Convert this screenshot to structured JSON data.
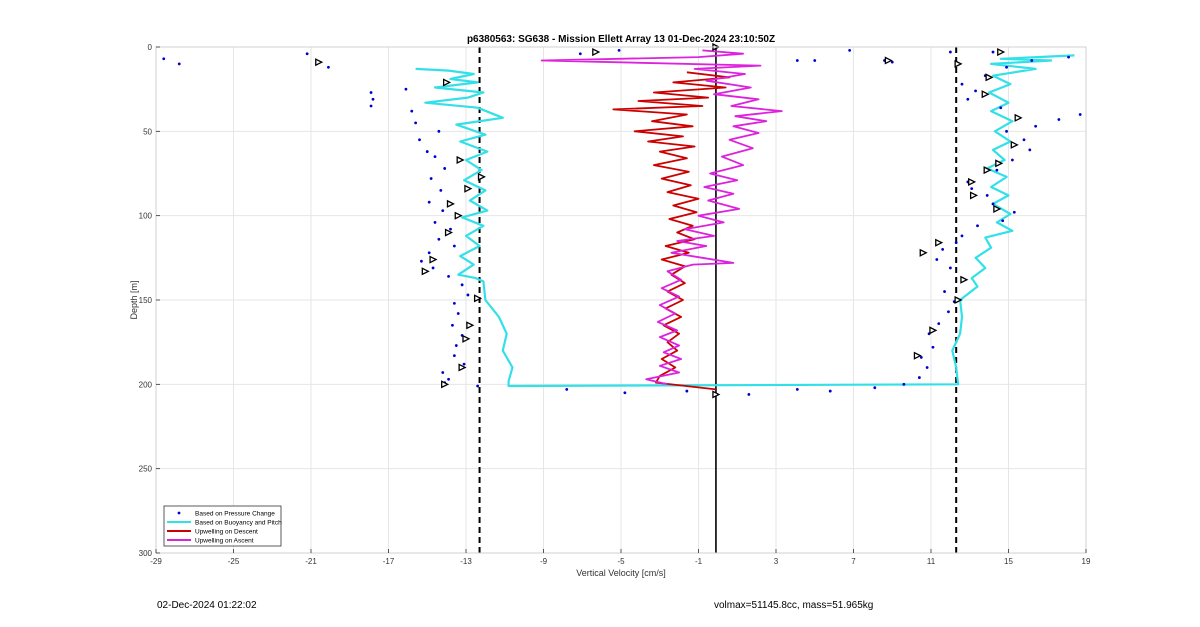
{
  "chart_data": {
    "type": "line",
    "title": "p6380563: SG638 - Mission Ellett Array 13 01-Dec-2024 23:10:50Z",
    "xlabel": "Vertical Velocity [cm/s]",
    "ylabel": "Depth [m]",
    "xlim": [
      -29,
      19
    ],
    "ylim": [
      0,
      300
    ],
    "y_reversed": true,
    "x_ticks": [
      -29,
      -25,
      -21,
      -17,
      -13,
      -9,
      -5,
      -1,
      3,
      7,
      11,
      15,
      19
    ],
    "y_ticks": [
      0,
      50,
      100,
      150,
      200,
      250,
      300
    ],
    "x_tick_labels": [
      "-29",
      "-25",
      "-21",
      "-17",
      "-13",
      "-9",
      "-5",
      "-1",
      "3",
      "7",
      "11",
      "15",
      "19"
    ],
    "y_tick_labels": [
      "0",
      "50",
      "100",
      "150",
      "200",
      "250",
      "300"
    ],
    "grid": true,
    "legend_position": "bottom-left",
    "reference_lines": {
      "dashed_x": [
        -12.3,
        12.3
      ],
      "solid_x": [
        -0.1
      ]
    },
    "series": [
      {
        "name": "Based on Pressure Change",
        "style": "dots",
        "color": "#0000cc",
        "points": [
          [
            -28.6,
            7
          ],
          [
            -27.8,
            10
          ],
          [
            -21.2,
            4
          ],
          [
            -20.1,
            12
          ],
          [
            -17.9,
            27
          ],
          [
            -17.8,
            31
          ],
          [
            -17.9,
            35
          ],
          [
            -16.1,
            25
          ],
          [
            -15.8,
            38
          ],
          [
            -15.6,
            45
          ],
          [
            -15.4,
            55
          ],
          [
            -15.0,
            62
          ],
          [
            -14.4,
            50
          ],
          [
            -14.6,
            65
          ],
          [
            -14.1,
            72
          ],
          [
            -14.8,
            78
          ],
          [
            -14.3,
            85
          ],
          [
            -14.9,
            92
          ],
          [
            -14.2,
            97
          ],
          [
            -14.6,
            104
          ],
          [
            -13.8,
            108
          ],
          [
            -14.4,
            114
          ],
          [
            -13.6,
            118
          ],
          [
            -14.9,
            122
          ],
          [
            -15.3,
            127
          ],
          [
            -14.7,
            131
          ],
          [
            -13.9,
            136
          ],
          [
            -13.2,
            141
          ],
          [
            -12.9,
            147
          ],
          [
            -13.6,
            152
          ],
          [
            -13.4,
            158
          ],
          [
            -13.7,
            165
          ],
          [
            -13.2,
            171
          ],
          [
            -13.5,
            177
          ],
          [
            -13.6,
            183
          ],
          [
            -13.1,
            188
          ],
          [
            -14.2,
            193
          ],
          [
            -13.9,
            197
          ],
          [
            -14.1,
            199
          ],
          [
            -12.4,
            201
          ],
          [
            -7.8,
            203
          ],
          [
            -4.8,
            205
          ],
          [
            -1.6,
            204
          ],
          [
            1.6,
            206
          ],
          [
            4.1,
            203
          ],
          [
            5.8,
            204
          ],
          [
            8.1,
            202
          ],
          [
            9.6,
            200
          ],
          [
            10.4,
            196
          ],
          [
            10.8,
            190
          ],
          [
            10.5,
            184
          ],
          [
            11.1,
            178
          ],
          [
            10.9,
            170
          ],
          [
            11.4,
            164
          ],
          [
            11.9,
            157
          ],
          [
            12.2,
            151
          ],
          [
            11.7,
            145
          ],
          [
            12.6,
            138
          ],
          [
            12.0,
            131
          ],
          [
            11.3,
            126
          ],
          [
            11.6,
            120
          ],
          [
            12.3,
            116
          ],
          [
            12.6,
            112
          ],
          [
            13.4,
            106
          ],
          [
            14.7,
            103
          ],
          [
            15.3,
            98
          ],
          [
            14.2,
            93
          ],
          [
            13.9,
            88
          ],
          [
            13.1,
            84
          ],
          [
            12.9,
            80
          ],
          [
            14.4,
            73
          ],
          [
            15.2,
            67
          ],
          [
            16.1,
            61
          ],
          [
            15.8,
            55
          ],
          [
            14.9,
            50
          ],
          [
            16.4,
            47
          ],
          [
            17.6,
            43
          ],
          [
            18.7,
            40
          ],
          [
            14.6,
            36
          ],
          [
            12.9,
            31
          ],
          [
            13.3,
            26
          ],
          [
            12.6,
            22
          ],
          [
            13.8,
            17
          ],
          [
            14.9,
            12
          ],
          [
            16.2,
            8
          ],
          [
            18.1,
            6
          ],
          [
            14.2,
            3
          ],
          [
            12.0,
            3
          ],
          [
            5.0,
            8
          ],
          [
            4.1,
            8
          ],
          [
            6.8,
            2
          ],
          [
            9.0,
            9
          ],
          [
            8.6,
            8
          ],
          [
            -5.1,
            2
          ],
          [
            -7.1,
            4
          ]
        ]
      },
      {
        "name": "Based on Buoyancy and Pitch",
        "style": "line",
        "color": "#33e0e8",
        "points": [
          [
            -15.6,
            13
          ],
          [
            -13.9,
            14
          ],
          [
            -12.6,
            16
          ],
          [
            -13.8,
            19
          ],
          [
            -12.4,
            21
          ],
          [
            -14.6,
            24
          ],
          [
            -12.1,
            27
          ],
          [
            -12.9,
            30
          ],
          [
            -15.1,
            33
          ],
          [
            -12.4,
            36
          ],
          [
            -11.1,
            42
          ],
          [
            -13.5,
            46
          ],
          [
            -12.0,
            52
          ],
          [
            -13.3,
            56
          ],
          [
            -11.9,
            62
          ],
          [
            -13.0,
            67
          ],
          [
            -12.2,
            73
          ],
          [
            -13.1,
            79
          ],
          [
            -12.0,
            85
          ],
          [
            -12.8,
            91
          ],
          [
            -11.9,
            97
          ],
          [
            -13.2,
            101
          ],
          [
            -12.1,
            106
          ],
          [
            -13.0,
            112
          ],
          [
            -12.3,
            118
          ],
          [
            -13.3,
            124
          ],
          [
            -12.6,
            129
          ],
          [
            -13.4,
            135
          ],
          [
            -12.5,
            137
          ],
          [
            -12.1,
            139
          ],
          [
            -12.0,
            150
          ],
          [
            -11.3,
            160
          ],
          [
            -10.9,
            170
          ],
          [
            -11.1,
            180
          ],
          [
            -10.6,
            190
          ],
          [
            -10.8,
            198
          ],
          [
            -10.8,
            201
          ],
          [
            12.4,
            200
          ],
          [
            12.3,
            190
          ],
          [
            12.1,
            180
          ],
          [
            12.5,
            170
          ],
          [
            12.6,
            160
          ],
          [
            12.5,
            150
          ],
          [
            13.4,
            142
          ],
          [
            13.1,
            137
          ],
          [
            13.8,
            131
          ],
          [
            13.3,
            125
          ],
          [
            14.1,
            119
          ],
          [
            13.8,
            113
          ],
          [
            15.2,
            109
          ],
          [
            14.4,
            104
          ],
          [
            15.1,
            99
          ],
          [
            14.2,
            93
          ],
          [
            15.0,
            88
          ],
          [
            14.1,
            83
          ],
          [
            14.9,
            77
          ],
          [
            13.9,
            72
          ],
          [
            14.8,
            67
          ],
          [
            14.2,
            61
          ],
          [
            15.1,
            56
          ],
          [
            14.3,
            50
          ],
          [
            15.2,
            44
          ],
          [
            14.1,
            38
          ],
          [
            15.0,
            33
          ],
          [
            14.0,
            27
          ],
          [
            15.1,
            22
          ],
          [
            14.2,
            17
          ],
          [
            16.4,
            13
          ],
          [
            14.1,
            10
          ],
          [
            17.2,
            8
          ],
          [
            14.6,
            7
          ],
          [
            18.4,
            5
          ]
        ]
      },
      {
        "name": "Upwelling on Descent",
        "style": "line",
        "color": "#cc0000",
        "points": [
          [
            -1.6,
            15
          ],
          [
            0.6,
            18
          ],
          [
            -2.3,
            21
          ],
          [
            0.4,
            24
          ],
          [
            -3.3,
            27
          ],
          [
            -0.5,
            30
          ],
          [
            -4.1,
            32
          ],
          [
            -0.8,
            35
          ],
          [
            -5.4,
            37
          ],
          [
            -1.6,
            40
          ],
          [
            -3.4,
            44
          ],
          [
            -1.3,
            47
          ],
          [
            -4.3,
            50
          ],
          [
            -1.8,
            53
          ],
          [
            -3.6,
            56
          ],
          [
            -1.2,
            59
          ],
          [
            -3.0,
            62
          ],
          [
            -1.6,
            66
          ],
          [
            -3.3,
            70
          ],
          [
            -1.5,
            74
          ],
          [
            -2.9,
            78
          ],
          [
            -1.4,
            82
          ],
          [
            -2.6,
            86
          ],
          [
            -1.0,
            90
          ],
          [
            -2.3,
            94
          ],
          [
            -1.1,
            98
          ],
          [
            -2.5,
            102
          ],
          [
            -1.3,
            106
          ],
          [
            -2.1,
            110
          ],
          [
            -1.2,
            114
          ],
          [
            -2.7,
            118
          ],
          [
            -1.5,
            122
          ],
          [
            -2.9,
            126
          ],
          [
            -1.7,
            130
          ],
          [
            -2.4,
            135
          ],
          [
            -1.7,
            140
          ],
          [
            -2.6,
            145
          ],
          [
            -1.8,
            150
          ],
          [
            -2.7,
            155
          ],
          [
            -1.9,
            160
          ],
          [
            -2.8,
            165
          ],
          [
            -2.0,
            170
          ],
          [
            -2.6,
            175
          ],
          [
            -2.1,
            180
          ],
          [
            -2.9,
            185
          ],
          [
            -2.2,
            190
          ],
          [
            -3.0,
            195
          ],
          [
            -3.2,
            199
          ],
          [
            -0.1,
            203
          ]
        ]
      },
      {
        "name": "Upwelling on Ascent",
        "style": "line",
        "color": "#dd22dd",
        "points": [
          [
            -2.6,
            200
          ],
          [
            -3.7,
            197
          ],
          [
            -2.0,
            193
          ],
          [
            -3.0,
            189
          ],
          [
            -1.9,
            185
          ],
          [
            -2.8,
            181
          ],
          [
            -2.0,
            177
          ],
          [
            -3.0,
            172
          ],
          [
            -2.1,
            168
          ],
          [
            -3.1,
            163
          ],
          [
            -2.2,
            158
          ],
          [
            -3.0,
            153
          ],
          [
            -2.0,
            148
          ],
          [
            -2.9,
            143
          ],
          [
            -1.9,
            138
          ],
          [
            -2.6,
            133
          ],
          [
            -1.3,
            129
          ],
          [
            0.8,
            128
          ],
          [
            -0.8,
            125
          ],
          [
            -2.4,
            122
          ],
          [
            -0.6,
            118
          ],
          [
            -2.1,
            115
          ],
          [
            -0.2,
            112
          ],
          [
            -1.7,
            108
          ],
          [
            0.3,
            104
          ],
          [
            -1.0,
            100
          ],
          [
            1.1,
            96
          ],
          [
            -0.5,
            91
          ],
          [
            0.8,
            87
          ],
          [
            -0.7,
            83
          ],
          [
            1.0,
            79
          ],
          [
            -0.4,
            75
          ],
          [
            1.3,
            70
          ],
          [
            0.2,
            65
          ],
          [
            1.8,
            60
          ],
          [
            0.6,
            55
          ],
          [
            2.1,
            51
          ],
          [
            0.8,
            47
          ],
          [
            2.5,
            44
          ],
          [
            0.9,
            41
          ],
          [
            3.3,
            38
          ],
          [
            0.7,
            35
          ],
          [
            2.1,
            31
          ],
          [
            -0.2,
            28
          ],
          [
            1.7,
            24
          ],
          [
            -0.6,
            20
          ],
          [
            1.4,
            16
          ],
          [
            -1.2,
            13
          ],
          [
            2.2,
            11
          ],
          [
            -9.1,
            8
          ],
          [
            -1.0,
            6
          ],
          [
            1.3,
            4
          ],
          [
            -0.8,
            2
          ]
        ]
      }
    ],
    "markers": {
      "style": "triangle",
      "points": [
        [
          -20.6,
          9
        ],
        [
          -14.0,
          21
        ],
        [
          -13.3,
          67
        ],
        [
          -12.2,
          77
        ],
        [
          -12.9,
          84
        ],
        [
          -13.8,
          93
        ],
        [
          -13.4,
          100
        ],
        [
          -13.9,
          110
        ],
        [
          -14.7,
          126
        ],
        [
          -15.1,
          133
        ],
        [
          -12.4,
          149
        ],
        [
          -12.8,
          165
        ],
        [
          -13.0,
          173
        ],
        [
          -13.2,
          190
        ],
        [
          -14.1,
          200
        ],
        [
          -6.3,
          3
        ],
        [
          -0.1,
          0
        ],
        [
          -0.1,
          206
        ],
        [
          8.8,
          8
        ],
        [
          12.4,
          10
        ],
        [
          14.6,
          3
        ],
        [
          14.0,
          18
        ],
        [
          13.8,
          28
        ],
        [
          15.5,
          42
        ],
        [
          15.3,
          58
        ],
        [
          14.5,
          69
        ],
        [
          13.9,
          73
        ],
        [
          13.1,
          80
        ],
        [
          13.2,
          88
        ],
        [
          14.4,
          96
        ],
        [
          11.4,
          116
        ],
        [
          10.6,
          122
        ],
        [
          12.7,
          138
        ],
        [
          12.4,
          150
        ],
        [
          11.1,
          168
        ],
        [
          10.3,
          183
        ]
      ]
    }
  },
  "footer": {
    "timestamp": "02-Dec-2024 01:22:02",
    "stats": "volmax=51145.8cc, mass=51.965kg"
  }
}
